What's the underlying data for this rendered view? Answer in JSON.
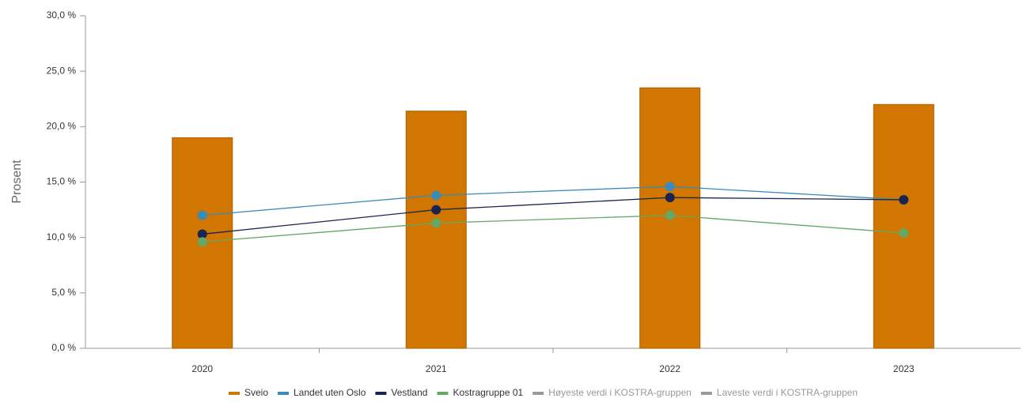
{
  "chart_data": {
    "type": "bar-line",
    "y_label": "Prosent",
    "categories": [
      "2020",
      "2021",
      "2022",
      "2023"
    ],
    "ylim": [
      0,
      30
    ],
    "yticks": [
      {
        "value": 0,
        "label": "0,0 %"
      },
      {
        "value": 5,
        "label": "5,0 %"
      },
      {
        "value": 10,
        "label": "10,0 %"
      },
      {
        "value": 15,
        "label": "15,0 %"
      },
      {
        "value": 20,
        "label": "20,0 %"
      },
      {
        "value": 25,
        "label": "25,0 %"
      },
      {
        "value": 30,
        "label": "30,0 %"
      }
    ],
    "series": [
      {
        "name": "Sveio",
        "type": "bar",
        "color": "#d17600",
        "values": [
          19.0,
          21.4,
          23.5,
          22.0
        ]
      },
      {
        "name": "Landet uten Oslo",
        "type": "line",
        "color": "#3a8bb8",
        "values": [
          12.0,
          13.8,
          14.6,
          13.4
        ]
      },
      {
        "name": "Vestland",
        "type": "line",
        "color": "#1b2450",
        "values": [
          10.3,
          12.5,
          13.6,
          13.4
        ]
      },
      {
        "name": "Kostragruppe 01",
        "type": "line",
        "color": "#65a865",
        "values": [
          9.6,
          11.3,
          12.0,
          10.4
        ]
      },
      {
        "name": "Høyeste verdi i KOSTRA-gruppen",
        "type": "line",
        "color": "#9a9a9a",
        "hidden": true,
        "values": [
          null,
          null,
          null,
          null
        ]
      },
      {
        "name": "Laveste verdi i KOSTRA-gruppen",
        "type": "line",
        "color": "#9a9a9a",
        "hidden": true,
        "values": [
          null,
          null,
          null,
          null
        ]
      }
    ],
    "legend": "bottom"
  }
}
